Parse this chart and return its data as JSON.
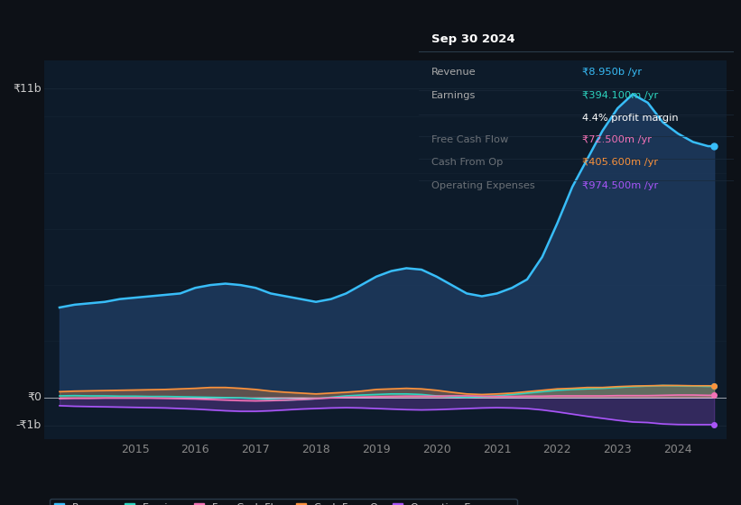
{
  "bg_color": "#0d1117",
  "plot_bg_color": "#0d1b2a",
  "grid_color": "#1e2d3d",
  "years": [
    2013.75,
    2014.0,
    2014.25,
    2014.5,
    2014.75,
    2015.0,
    2015.25,
    2015.5,
    2015.75,
    2016.0,
    2016.25,
    2016.5,
    2016.75,
    2017.0,
    2017.25,
    2017.5,
    2017.75,
    2018.0,
    2018.25,
    2018.5,
    2018.75,
    2019.0,
    2019.25,
    2019.5,
    2019.75,
    2020.0,
    2020.25,
    2020.5,
    2020.75,
    2021.0,
    2021.25,
    2021.5,
    2021.75,
    2022.0,
    2022.25,
    2022.5,
    2022.75,
    2023.0,
    2023.25,
    2023.5,
    2023.75,
    2024.0,
    2024.25,
    2024.5,
    2024.6
  ],
  "revenue": [
    3.2,
    3.3,
    3.35,
    3.4,
    3.5,
    3.55,
    3.6,
    3.65,
    3.7,
    3.9,
    4.0,
    4.05,
    4.0,
    3.9,
    3.7,
    3.6,
    3.5,
    3.4,
    3.5,
    3.7,
    4.0,
    4.3,
    4.5,
    4.6,
    4.55,
    4.3,
    4.0,
    3.7,
    3.6,
    3.7,
    3.9,
    4.2,
    5.0,
    6.2,
    7.5,
    8.5,
    9.5,
    10.3,
    10.8,
    10.5,
    9.8,
    9.4,
    9.1,
    8.95,
    8.95
  ],
  "earnings": [
    0.05,
    0.06,
    0.05,
    0.05,
    0.04,
    0.04,
    0.03,
    0.03,
    0.02,
    0.01,
    0.0,
    -0.01,
    -0.02,
    -0.05,
    -0.08,
    -0.1,
    -0.08,
    -0.05,
    0.0,
    0.05,
    0.08,
    0.1,
    0.12,
    0.12,
    0.1,
    0.05,
    0.02,
    0.0,
    0.02,
    0.05,
    0.1,
    0.15,
    0.2,
    0.25,
    0.28,
    0.3,
    0.32,
    0.35,
    0.38,
    0.4,
    0.42,
    0.41,
    0.4,
    0.39,
    0.394
  ],
  "free_cash_flow": [
    -0.05,
    -0.04,
    -0.04,
    -0.03,
    -0.03,
    -0.03,
    -0.03,
    -0.04,
    -0.05,
    -0.06,
    -0.08,
    -0.1,
    -0.12,
    -0.13,
    -0.12,
    -0.1,
    -0.08,
    -0.05,
    -0.02,
    0.0,
    0.01,
    0.02,
    0.03,
    0.04,
    0.04,
    0.04,
    0.05,
    0.05,
    0.04,
    0.03,
    0.03,
    0.04,
    0.04,
    0.05,
    0.05,
    0.05,
    0.05,
    0.06,
    0.06,
    0.06,
    0.07,
    0.08,
    0.08,
    0.07,
    0.0725
  ],
  "cash_from_op": [
    0.2,
    0.22,
    0.23,
    0.24,
    0.25,
    0.26,
    0.27,
    0.28,
    0.3,
    0.32,
    0.35,
    0.35,
    0.32,
    0.28,
    0.22,
    0.18,
    0.15,
    0.12,
    0.15,
    0.18,
    0.22,
    0.28,
    0.3,
    0.32,
    0.3,
    0.25,
    0.18,
    0.12,
    0.1,
    0.12,
    0.15,
    0.2,
    0.25,
    0.3,
    0.32,
    0.35,
    0.35,
    0.38,
    0.4,
    0.41,
    0.42,
    0.42,
    0.41,
    0.41,
    0.4056
  ],
  "operating_expenses": [
    -0.3,
    -0.32,
    -0.33,
    -0.34,
    -0.35,
    -0.36,
    -0.37,
    -0.38,
    -0.4,
    -0.42,
    -0.45,
    -0.48,
    -0.5,
    -0.5,
    -0.48,
    -0.45,
    -0.42,
    -0.4,
    -0.38,
    -0.37,
    -0.38,
    -0.4,
    -0.42,
    -0.44,
    -0.45,
    -0.44,
    -0.42,
    -0.4,
    -0.38,
    -0.37,
    -0.38,
    -0.4,
    -0.45,
    -0.52,
    -0.6,
    -0.68,
    -0.75,
    -0.82,
    -0.88,
    -0.9,
    -0.95,
    -0.97,
    -0.975,
    -0.975,
    -0.9745
  ],
  "revenue_color": "#38bdf8",
  "earnings_color": "#2dd4bf",
  "free_cash_flow_color": "#f472b6",
  "cash_from_op_color": "#fb923c",
  "operating_expenses_color": "#a855f7",
  "revenue_fill_color": "#1e3a5f",
  "ylabel_top": "₹11b",
  "ylabel_zero": "₹0",
  "ylabel_bottom": "-₹1b",
  "ylim_top": 12.0,
  "ylim_bottom": -1.5,
  "xlim_left": 2013.5,
  "xlim_right": 2024.8,
  "xtick_labels": [
    "2015",
    "2016",
    "2017",
    "2018",
    "2019",
    "2020",
    "2021",
    "2022",
    "2023",
    "2024"
  ],
  "xtick_positions": [
    2015,
    2016,
    2017,
    2018,
    2019,
    2020,
    2021,
    2022,
    2023,
    2024
  ],
  "legend_labels": [
    "Revenue",
    "Earnings",
    "Free Cash Flow",
    "Cash From Op",
    "Operating Expenses"
  ],
  "info_box": {
    "title": "Sep 30 2024",
    "rows": [
      {
        "label": "Revenue",
        "value": "₹8.950b /yr",
        "value_color": "#38bdf8"
      },
      {
        "label": "Earnings",
        "value": "₹394.100m /yr",
        "value_color": "#2dd4bf"
      },
      {
        "label": "",
        "value": "4.4% profit margin",
        "value_color": "#ffffff"
      },
      {
        "label": "Free Cash Flow",
        "value": "₹72.500m /yr",
        "value_color": "#f472b6",
        "label_alpha": 0.6
      },
      {
        "label": "Cash From Op",
        "value": "₹405.600m /yr",
        "value_color": "#fb923c",
        "label_alpha": 0.6
      },
      {
        "label": "Operating Expenses",
        "value": "₹974.500m /yr",
        "value_color": "#a855f7",
        "label_alpha": 0.6
      }
    ]
  }
}
